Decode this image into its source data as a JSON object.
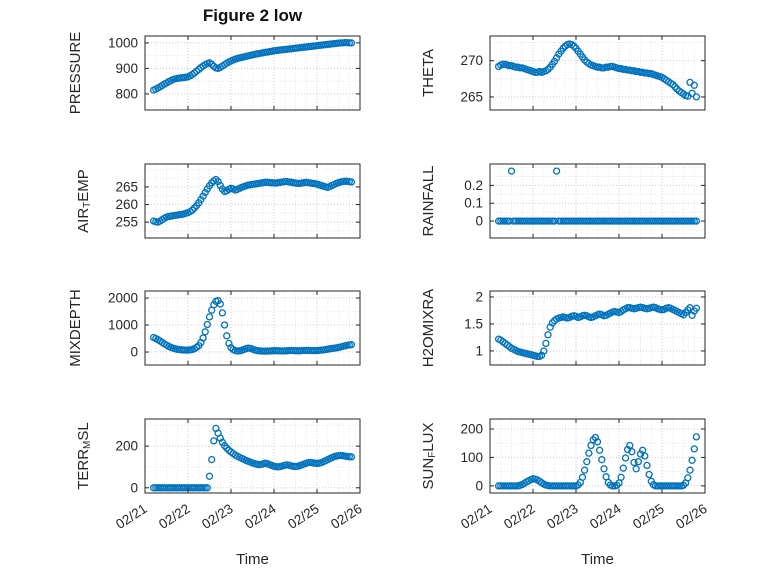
{
  "figure": {
    "title": "Figure 2 low",
    "xlabel": "Time",
    "background": "#ffffff"
  },
  "style": {
    "marker_color": "#0072BD",
    "marker_style": "open-circle",
    "axis_color": "#262626",
    "grid_major_color": "#cccccc",
    "grid_minor_color": "#e6e6e6"
  },
  "time_axis": {
    "xlim": [
      0,
      5
    ],
    "tick_values": [
      0,
      1,
      2,
      3,
      4,
      5
    ],
    "tick_labels": [
      "02/21",
      "02/22",
      "02/23",
      "02/24",
      "02/25",
      "02/26"
    ],
    "minor_step": 0.25,
    "x_days": [
      0.2,
      0.25,
      0.3,
      0.35,
      0.4,
      0.45,
      0.5,
      0.55,
      0.6,
      0.65,
      0.7,
      0.75,
      0.8,
      0.85,
      0.9,
      0.95,
      1,
      1.05,
      1.1,
      1.15,
      1.2,
      1.25,
      1.3,
      1.35,
      1.4,
      1.45,
      1.5,
      1.55,
      1.6,
      1.65,
      1.7,
      1.75,
      1.8,
      1.85,
      1.9,
      1.95,
      2,
      2.05,
      2.1,
      2.15,
      2.2,
      2.25,
      2.3,
      2.35,
      2.4,
      2.45,
      2.5,
      2.55,
      2.6,
      2.65,
      2.7,
      2.75,
      2.8,
      2.85,
      2.9,
      2.95,
      3,
      3.05,
      3.1,
      3.15,
      3.2,
      3.25,
      3.3,
      3.35,
      3.4,
      3.45,
      3.5,
      3.55,
      3.6,
      3.65,
      3.7,
      3.75,
      3.8,
      3.85,
      3.9,
      3.95,
      4,
      4.05,
      4.1,
      4.15,
      4.2,
      4.25,
      4.3,
      4.35,
      4.4,
      4.45,
      4.5,
      4.55,
      4.6,
      4.65,
      4.7,
      4.75,
      4.8
    ]
  },
  "chart_data": [
    {
      "id": "pressure",
      "type": "scatter",
      "ylabel_pre": "PRESSURE",
      "ylabel_sub": "",
      "ylabel_post": "",
      "ylim": [
        737,
        1027
      ],
      "yticks": [
        800,
        900,
        1000
      ],
      "ytick_labels": [
        "800",
        "900",
        "1000"
      ],
      "y": [
        815,
        819,
        823,
        828,
        833,
        838,
        843,
        848,
        852,
        856,
        859,
        861,
        862,
        863,
        864,
        865,
        867,
        871,
        876,
        882,
        889,
        896,
        903,
        909,
        915,
        919,
        922,
        916,
        908,
        902,
        900,
        904,
        909,
        915,
        920,
        925,
        929,
        933,
        936,
        939,
        941,
        943,
        945,
        947,
        949,
        951,
        953,
        955,
        957,
        958,
        960,
        961,
        963,
        964,
        966,
        967,
        969,
        970,
        971,
        972,
        973,
        974,
        975,
        976,
        977,
        978,
        979,
        980,
        981,
        982,
        983,
        984,
        985,
        986,
        987,
        988,
        989,
        990,
        991,
        992,
        993,
        994,
        995,
        996,
        997,
        998,
        999,
        1000,
        1000,
        1001,
        1001,
        1000,
        1000
      ]
    },
    {
      "id": "theta",
      "type": "scatter",
      "ylabel_pre": "THETA",
      "ylabel_sub": "",
      "ylabel_post": "",
      "ylim": [
        263.2,
        273.4
      ],
      "yticks": [
        265,
        270
      ],
      "ytick_labels": [
        "265",
        "270"
      ],
      "y": [
        269.2,
        269.4,
        269.5,
        269.5,
        269.4,
        269.3,
        269.3,
        269.2,
        269.1,
        269.1,
        269.0,
        269.0,
        268.9,
        268.8,
        268.7,
        268.6,
        268.5,
        268.4,
        268.4,
        268.5,
        268.4,
        268.5,
        268.6,
        268.8,
        269.1,
        269.5,
        269.9,
        270.4,
        270.9,
        271.3,
        271.7,
        272.0,
        272.2,
        272.3,
        272.2,
        272.0,
        271.7,
        271.3,
        270.9,
        270.5,
        270.1,
        269.8,
        269.6,
        269.4,
        269.3,
        269.2,
        269.1,
        269.1,
        269.0,
        269.0,
        269.1,
        269.1,
        269.2,
        269.2,
        269.1,
        269.0,
        268.9,
        268.9,
        268.8,
        268.8,
        268.7,
        268.7,
        268.6,
        268.6,
        268.5,
        268.5,
        268.4,
        268.4,
        268.3,
        268.3,
        268.2,
        268.2,
        268.1,
        268.0,
        267.9,
        267.8,
        267.7,
        267.5,
        267.3,
        267.1,
        266.9,
        266.7,
        266.4,
        266.1,
        265.8,
        265.6,
        265.4,
        265.2,
        265.1,
        267.0,
        265.5,
        266.6,
        265.0
      ]
    },
    {
      "id": "air-temp",
      "type": "scatter",
      "ylabel_pre": "AIR",
      "ylabel_sub": "T",
      "ylabel_post": "EMP",
      "ylim": [
        250.5,
        271.5
      ],
      "yticks": [
        255,
        260,
        265
      ],
      "ytick_labels": [
        "255",
        "260",
        "265"
      ],
      "y": [
        255.3,
        255.1,
        255.0,
        255.3,
        255.7,
        256.1,
        256.4,
        256.6,
        256.7,
        256.8,
        256.9,
        257.0,
        257.1,
        257.2,
        257.3,
        257.5,
        257.7,
        258.0,
        258.4,
        259.0,
        259.7,
        260.5,
        261.4,
        262.4,
        263.4,
        264.4,
        265.3,
        266.1,
        266.7,
        267.1,
        266.5,
        265.4,
        264.4,
        263.7,
        263.9,
        264.3,
        264.6,
        264.4,
        264.1,
        264.3,
        264.6,
        264.9,
        265.1,
        265.3,
        265.5,
        265.6,
        265.7,
        265.8,
        265.9,
        266.0,
        266.1,
        266.2,
        266.3,
        266.3,
        266.2,
        266.2,
        266.1,
        266.1,
        266.2,
        266.3,
        266.4,
        266.5,
        266.5,
        266.4,
        266.3,
        266.2,
        266.1,
        266.0,
        266.0,
        266.1,
        266.2,
        266.3,
        266.2,
        266.1,
        266.0,
        265.9,
        265.8,
        265.6,
        265.4,
        265.2,
        265.0,
        264.9,
        265.1,
        265.4,
        265.7,
        266.0,
        266.2,
        266.4,
        266.5,
        266.6,
        266.6,
        266.5,
        266.4
      ]
    },
    {
      "id": "rainfall",
      "type": "scatter",
      "ylabel_pre": "RAINFALL",
      "ylabel_sub": "",
      "ylabel_post": "",
      "ylim": [
        -0.095,
        0.32
      ],
      "yticks": [
        0,
        0.1,
        0.2
      ],
      "ytick_labels": [
        "0",
        "0.1",
        "0.2"
      ],
      "y": [
        0,
        0,
        0,
        0,
        0,
        0,
        0.28,
        0,
        0,
        0,
        0,
        0,
        0,
        0,
        0,
        0,
        0,
        0,
        0,
        0,
        0,
        0,
        0,
        0,
        0,
        0,
        0,
        0.28,
        0,
        0,
        0,
        0,
        0,
        0,
        0,
        0,
        0,
        0,
        0,
        0,
        0,
        0,
        0,
        0,
        0,
        0,
        0,
        0,
        0,
        0,
        0,
        0,
        0,
        0,
        0,
        0,
        0,
        0,
        0,
        0,
        0,
        0,
        0,
        0,
        0,
        0,
        0,
        0,
        0,
        0,
        0,
        0,
        0,
        0,
        0,
        0,
        0,
        0,
        0,
        0,
        0,
        0,
        0,
        0,
        0,
        0,
        0,
        0,
        0,
        0,
        0,
        0,
        0
      ]
    },
    {
      "id": "mixdepth",
      "type": "scatter",
      "ylabel_pre": "MIXDEPTH",
      "ylabel_sub": "",
      "ylabel_post": "",
      "ylim": [
        -480,
        2260
      ],
      "yticks": [
        0,
        1000,
        2000
      ],
      "ytick_labels": [
        "0",
        "1000",
        "2000"
      ],
      "y": [
        540,
        500,
        455,
        405,
        355,
        305,
        255,
        210,
        175,
        145,
        120,
        100,
        90,
        82,
        76,
        72,
        70,
        78,
        95,
        125,
        170,
        240,
        350,
        520,
        750,
        1020,
        1300,
        1550,
        1750,
        1880,
        1900,
        1780,
        1450,
        1000,
        600,
        320,
        160,
        90,
        55,
        40,
        45,
        65,
        95,
        125,
        145,
        135,
        105,
        75,
        55,
        45,
        38,
        33,
        32,
        35,
        40,
        46,
        50,
        50,
        46,
        42,
        40,
        42,
        46,
        52,
        56,
        55,
        50,
        46,
        46,
        52,
        58,
        62,
        60,
        55,
        52,
        52,
        56,
        62,
        70,
        80,
        92,
        105,
        118,
        130,
        142,
        155,
        170,
        188,
        208,
        228,
        248,
        262,
        270
      ]
    },
    {
      "id": "h2omixra",
      "type": "scatter",
      "ylabel_pre": "H2OMIXRA",
      "ylabel_sub": "",
      "ylabel_post": "",
      "ylim": [
        0.74,
        2.11
      ],
      "yticks": [
        1,
        1.5,
        2
      ],
      "ytick_labels": [
        "1",
        "1.5",
        "2"
      ],
      "y": [
        1.22,
        1.2,
        1.17,
        1.14,
        1.11,
        1.08,
        1.05,
        1.03,
        1.01,
        0.99,
        0.98,
        0.97,
        0.96,
        0.95,
        0.94,
        0.93,
        0.92,
        0.91,
        0.9,
        0.9,
        0.92,
        1.0,
        1.14,
        1.3,
        1.44,
        1.52,
        1.56,
        1.59,
        1.61,
        1.62,
        1.63,
        1.62,
        1.61,
        1.62,
        1.64,
        1.65,
        1.64,
        1.62,
        1.63,
        1.65,
        1.66,
        1.65,
        1.63,
        1.62,
        1.63,
        1.65,
        1.67,
        1.68,
        1.67,
        1.65,
        1.66,
        1.68,
        1.7,
        1.72,
        1.73,
        1.72,
        1.71,
        1.73,
        1.76,
        1.78,
        1.8,
        1.8,
        1.79,
        1.78,
        1.79,
        1.8,
        1.81,
        1.8,
        1.79,
        1.78,
        1.79,
        1.8,
        1.81,
        1.8,
        1.78,
        1.77,
        1.76,
        1.77,
        1.79,
        1.8,
        1.79,
        1.77,
        1.75,
        1.73,
        1.71,
        1.69,
        1.67,
        1.71,
        1.76,
        1.8,
        1.66,
        1.74,
        1.79
      ]
    },
    {
      "id": "terr-msl",
      "type": "scatter",
      "ylabel_pre": "TERR",
      "ylabel_sub": "M",
      "ylabel_post": "SL",
      "ylim": [
        -25,
        330
      ],
      "yticks": [
        0,
        200
      ],
      "ytick_labels": [
        "0",
        "200"
      ],
      "y": [
        0,
        0,
        0,
        0,
        0,
        0,
        0,
        0,
        0,
        0,
        0,
        0,
        0,
        0,
        0,
        0,
        0,
        0,
        0,
        0,
        0,
        0,
        0,
        0,
        0,
        0,
        55,
        135,
        225,
        285,
        262,
        238,
        218,
        202,
        190,
        180,
        172,
        164,
        157,
        151,
        146,
        141,
        136,
        131,
        127,
        123,
        119,
        116,
        113,
        111,
        112,
        115,
        118,
        115,
        111,
        107,
        103,
        101,
        100,
        102,
        105,
        108,
        110,
        108,
        105,
        103,
        102,
        103,
        106,
        110,
        114,
        118,
        121,
        122,
        120,
        118,
        117,
        118,
        121,
        125,
        130,
        135,
        140,
        145,
        149,
        152,
        154,
        155,
        154,
        152,
        150,
        149,
        148
      ]
    },
    {
      "id": "sun-flux",
      "type": "scatter",
      "ylabel_pre": "SUN",
      "ylabel_sub": "F",
      "ylabel_post": "LUX",
      "ylim": [
        -25,
        235
      ],
      "yticks": [
        0,
        100,
        200
      ],
      "ytick_labels": [
        "0",
        "100",
        "200"
      ],
      "y": [
        0,
        0,
        0,
        0,
        0,
        0,
        0,
        0,
        0,
        0,
        2,
        5,
        9,
        14,
        18,
        22,
        25,
        24,
        21,
        16,
        11,
        6,
        3,
        1,
        0,
        0,
        0,
        0,
        0,
        0,
        0,
        0,
        0,
        0,
        0,
        0,
        0,
        3,
        12,
        30,
        55,
        85,
        115,
        142,
        162,
        170,
        155,
        125,
        92,
        60,
        32,
        12,
        3,
        0,
        0,
        2,
        10,
        30,
        62,
        98,
        128,
        142,
        120,
        82,
        60,
        85,
        112,
        125,
        105,
        72,
        40,
        16,
        4,
        0,
        0,
        0,
        0,
        0,
        0,
        0,
        0,
        0,
        0,
        0,
        0,
        0,
        2,
        10,
        28,
        55,
        90,
        130,
        172
      ]
    }
  ]
}
